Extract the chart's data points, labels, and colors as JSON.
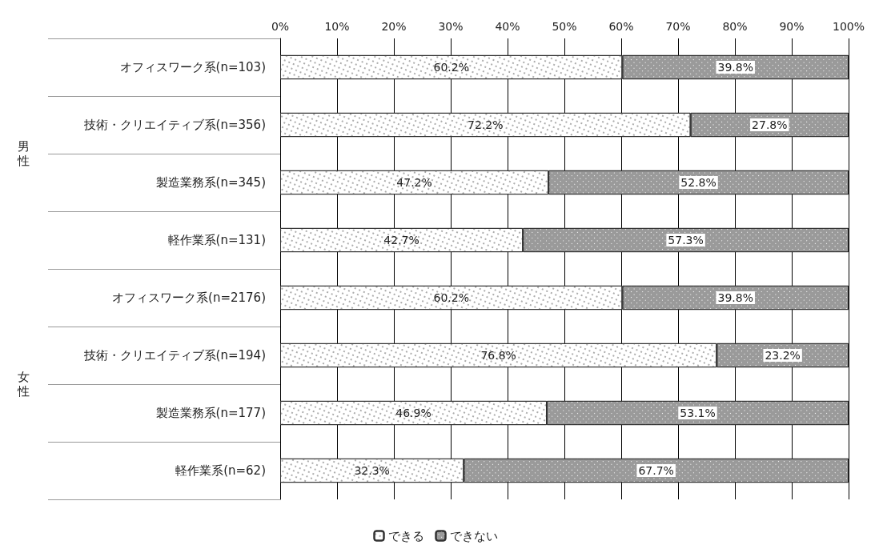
{
  "chart_data": {
    "type": "bar",
    "orientation": "horizontal",
    "stacked": true,
    "categories": [
      "オフィスワーク系(n=103)",
      "技術・クリエイティブ系(n=356)",
      "製造業務系(n=345)",
      "軽作業系(n=131)",
      "オフィスワーク系(n=2176)",
      "技術・クリエイティブ系(n=194)",
      "製造業務系(n=177)",
      "軽作業系(n=62)"
    ],
    "series": [
      {
        "name": "できる",
        "color": "#ffffff",
        "values": [
          60.2,
          72.2,
          47.2,
          42.7,
          60.2,
          76.8,
          46.9,
          32.3
        ],
        "value_labels": [
          "60.2%",
          "72.2%",
          "47.2%",
          "42.7%",
          "60.2%",
          "76.8%",
          "46.9%",
          "32.3%"
        ]
      },
      {
        "name": "できない",
        "color": "#9a9a9a",
        "values": [
          39.8,
          27.8,
          52.8,
          57.3,
          39.8,
          23.2,
          53.1,
          67.7
        ],
        "value_labels": [
          "39.8%",
          "27.8%",
          "52.8%",
          "57.3%",
          "39.8%",
          "23.2%",
          "53.1%",
          "67.7%"
        ]
      }
    ],
    "xlim": [
      0,
      100
    ],
    "xticks": [
      {
        "value": 0,
        "label": "0%"
      },
      {
        "value": 10,
        "label": "10%"
      },
      {
        "value": 20,
        "label": "20%"
      },
      {
        "value": 30,
        "label": "30%"
      },
      {
        "value": 40,
        "label": "40%"
      },
      {
        "value": 50,
        "label": "50%"
      },
      {
        "value": 60,
        "label": "60%"
      },
      {
        "value": 70,
        "label": "70%"
      },
      {
        "value": 80,
        "label": "80%"
      },
      {
        "value": 90,
        "label": "90%"
      },
      {
        "value": 100,
        "label": "100%"
      }
    ],
    "annotations": [
      "男性",
      "女性"
    ],
    "grid": "x",
    "legend": "bottom"
  }
}
